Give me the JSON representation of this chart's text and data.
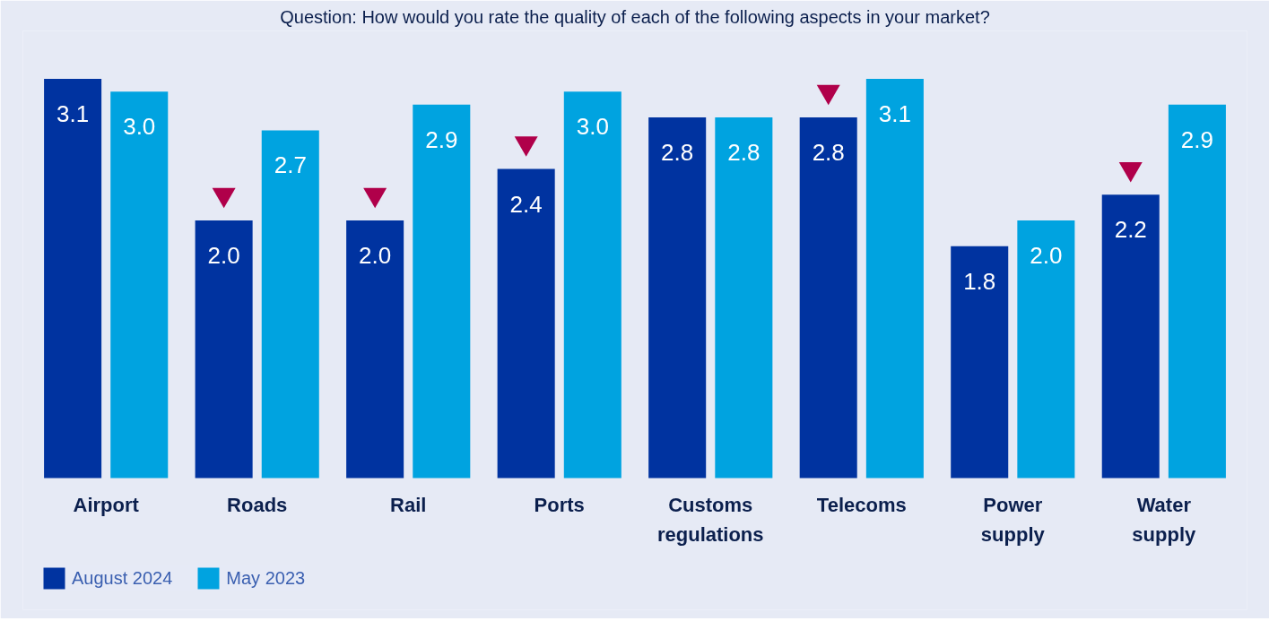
{
  "chart_data": {
    "type": "bar",
    "title": "Question: How would you rate the quality of each of the following aspects in your market?",
    "categories": [
      "Airport",
      "Roads",
      "Rail",
      "Ports",
      "Customs regulations",
      "Telecoms",
      "Power supply",
      "Water supply"
    ],
    "series": [
      {
        "name": "August 2024",
        "color": "#0033a0",
        "values": [
          3.1,
          2.0,
          2.0,
          2.4,
          2.8,
          2.8,
          1.8,
          2.2
        ],
        "value_labels": [
          "3.1",
          "2.0",
          "2.0",
          "2.4",
          "2.8",
          "2.8",
          "1.8",
          "2.2"
        ]
      },
      {
        "name": "May 2023",
        "color": "#00a3e0",
        "values": [
          3.0,
          2.7,
          2.9,
          3.0,
          2.8,
          3.1,
          2.0,
          2.9
        ],
        "value_labels": [
          "3.0",
          "2.7",
          "2.9",
          "3.0",
          "2.8",
          "3.1",
          "2.0",
          "2.9"
        ]
      },
      {
        "type": "scatter",
        "color": "#b0004a",
        "x": [
          "Airport",
          "Roads",
          "Rail",
          "Ports",
          "Customs regulations",
          "Telecoms",
          "Power supply",
          "Water supply"
        ],
        "values": [
          null,
          2.2,
          2.2,
          2.6,
          null,
          3.0,
          null,
          2.4
        ]
      }
    ],
    "legend": "bottom left",
    "grid": false
  }
}
